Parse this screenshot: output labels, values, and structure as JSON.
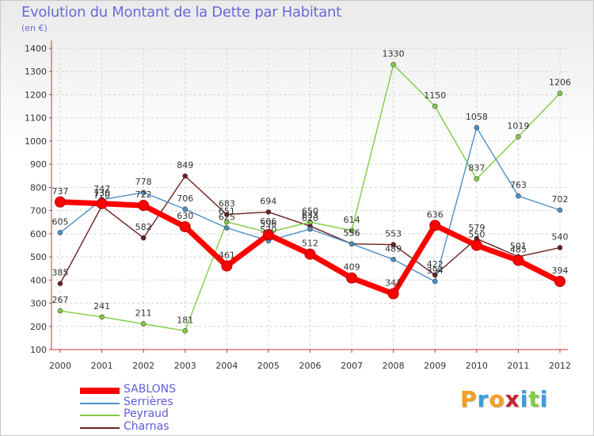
{
  "title": "Evolution du Montant de la Dette par Habitant",
  "subtitle": "(en €)",
  "logo_text": "Proxiti",
  "chart_data": {
    "type": "line",
    "x": [
      "2000",
      "2001",
      "2002",
      "2003",
      "2004",
      "2005",
      "2006",
      "2007",
      "2008",
      "2009",
      "2010",
      "2011",
      "2012"
    ],
    "ylim": [
      100,
      1400
    ],
    "yticks": [
      100,
      200,
      300,
      400,
      500,
      600,
      700,
      800,
      900,
      1000,
      1100,
      1200,
      1300,
      1400
    ],
    "grid": true,
    "legend_position": "bottom-left",
    "series": [
      {
        "name": "SABLONS",
        "color": "#ff0000",
        "values": [
          737,
          730,
          722,
          630,
          461,
          596,
          512,
          409,
          341,
          636,
          550,
          485,
          394
        ],
        "labels": [
          "737",
          "730",
          "722",
          "630",
          "461",
          "596",
          "512",
          "409",
          "341",
          "636",
          "550",
          "485",
          "394"
        ]
      },
      {
        "name": "Serrières",
        "color": "#4a90c8",
        "values": [
          605,
          747,
          778,
          706,
          625,
          570,
          620,
          556,
          489,
          394,
          1058,
          763,
          702
        ],
        "labels": [
          "605",
          "747",
          "778",
          "706",
          "625",
          "570",
          "620",
          "556",
          "489",
          "394",
          "1058",
          "763",
          "702"
        ]
      },
      {
        "name": "Peyraud",
        "color": "#80cc44",
        "values": [
          267,
          241,
          211,
          181,
          651,
          606,
          650,
          614,
          1330,
          1150,
          837,
          1019,
          1206
        ],
        "labels": [
          "267",
          "241",
          "211",
          "181",
          "651",
          "606",
          "650",
          "614",
          "1330",
          "1150",
          "837",
          "1019",
          "1206"
        ]
      },
      {
        "name": "Charnas",
        "color": "#6b1e1e",
        "values": [
          385,
          720,
          582,
          849,
          683,
          694,
          633,
          556,
          553,
          422,
          579,
          501,
          540
        ],
        "labels": [
          "385",
          "720",
          "582",
          "849",
          "683",
          "694",
          "633",
          "556",
          "553",
          "422",
          "579",
          "501",
          "540"
        ]
      }
    ]
  }
}
